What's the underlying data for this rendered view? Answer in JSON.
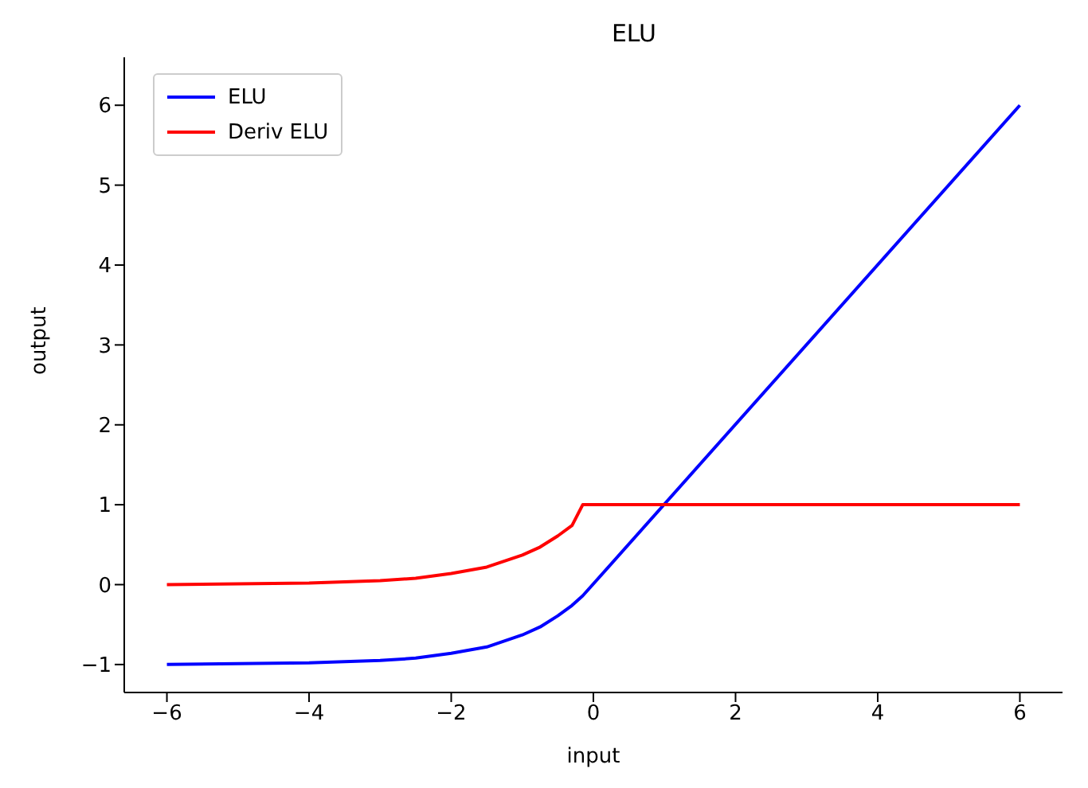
{
  "chart_data": {
    "type": "line",
    "title": "ELU",
    "xlabel": "input",
    "ylabel": "output",
    "x": [
      -6,
      -5,
      -4,
      -3,
      -2.5,
      -2,
      -1.5,
      -1,
      -0.75,
      -0.5,
      -0.3,
      -0.15,
      6
    ],
    "series": [
      {
        "name": "ELU",
        "color": "#0000ff",
        "values": [
          -1.0,
          -0.99,
          -0.98,
          -0.95,
          -0.92,
          -0.86,
          -0.78,
          -0.63,
          -0.53,
          -0.39,
          -0.26,
          -0.14,
          6
        ]
      },
      {
        "name": "Deriv ELU",
        "color": "#ff0000",
        "values": [
          0,
          0.01,
          0.02,
          0.05,
          0.08,
          0.14,
          0.22,
          0.37,
          0.47,
          0.61,
          0.74,
          1,
          1
        ]
      }
    ],
    "xlim": [
      -6.6,
      6.6
    ],
    "ylim": [
      -1.35,
      6.6
    ],
    "xticks": [
      {
        "value": -6,
        "label": "−6"
      },
      {
        "value": -4,
        "label": "−4"
      },
      {
        "value": -2,
        "label": "−2"
      },
      0,
      2,
      4,
      6
    ],
    "yticks": [
      {
        "value": -1,
        "label": "−1"
      },
      0,
      1,
      2,
      3,
      4,
      5,
      6
    ],
    "legend": "top left",
    "grid": false,
    "marker": "none",
    "line_style": "solid"
  }
}
